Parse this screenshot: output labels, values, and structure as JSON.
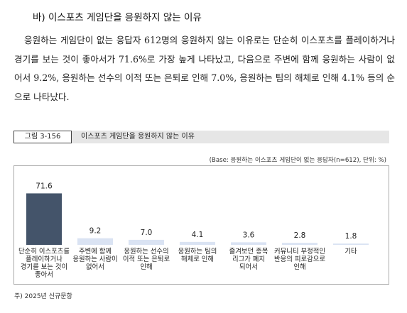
{
  "section": {
    "title": "바) 이스포츠 게임단을 응원하지 않는 이유"
  },
  "paragraph": "응원하는 게임단이 없는 응답자 612명의 응원하지 않는 이유로는 단순히 이스포츠를 플레이하거나 경기를 보는 것이 좋아서가 71.6%로 가장 높게 나타났고, 다음으로 주변에 함께 응원하는 사람이 없어서 9.2%, 응원하는 선수의 이적 또는 은퇴로 인해 7.0%, 응원하는 팀의 해체로 인해 4.1% 등의 순으로 나타났다.",
  "figure": {
    "label": "그림 3-156",
    "title": "이스포츠 게임단을 응원하지 않는 이유",
    "base_note": "(Base: 응원하는 이스포츠 게임단이 없는 응답자(n=612), 단위: %)",
    "footnote": "주) 2025년 신규문항"
  },
  "chart_data": {
    "type": "bar",
    "categories": [
      "단순히 이스포츠를 플레이하거나 경기를 보는 것이 좋아서",
      "주변에 함께 응원하는 사람이 없어서",
      "응원하는 선수의 이적 또는 은퇴로 인해",
      "응원하는 팀의 해체로 인해",
      "즐겨보던 종목 리그가 폐지되어서",
      "커뮤니티 부정적인 반응의 피로감으로 인해",
      "기타"
    ],
    "category_lines": [
      [
        "단순히 이스포츠를",
        "플레이하거나",
        "경기를 보는 것이",
        "좋아서"
      ],
      [
        "주변에 함께",
        "응원하는 사람이",
        "없어서"
      ],
      [
        "응원하는 선수의",
        "이적 또는 은퇴로",
        "인해"
      ],
      [
        "응원하는 팀의",
        "해체로 인해"
      ],
      [
        "즐겨보던 종목",
        "리그가 폐지",
        "되어서"
      ],
      [
        "커뮤니티 부정적인",
        "반응의 피로감으로",
        "인해"
      ],
      [
        "기타"
      ]
    ],
    "values": [
      71.6,
      9.2,
      7.0,
      4.1,
      3.6,
      2.8,
      1.8
    ],
    "value_labels": [
      "71.6",
      "9.2",
      "7.0",
      "4.1",
      "3.6",
      "2.8",
      "1.8"
    ],
    "ylim": [
      0,
      75
    ],
    "colors": {
      "highlight": "#44546a",
      "other": "#dae3f3"
    }
  }
}
